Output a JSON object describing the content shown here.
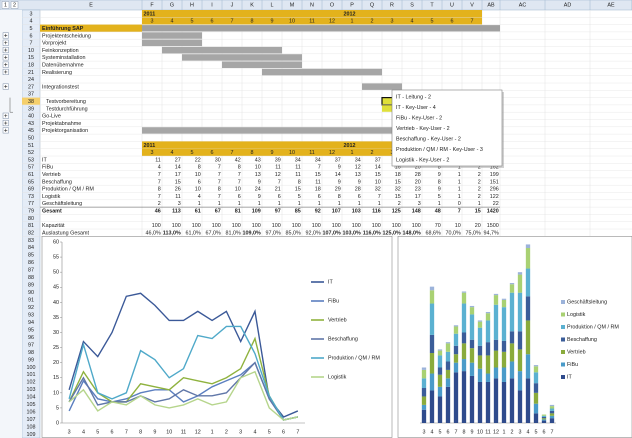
{
  "sheet": {
    "outline_levels": [
      1,
      2
    ],
    "columns": [
      "E",
      "F",
      "G",
      "H",
      "I",
      "J",
      "K",
      "L",
      "M",
      "N",
      "O",
      "P",
      "Q",
      "R",
      "S",
      "T",
      "U",
      "V",
      "AB",
      "AC",
      "AD",
      "AE"
    ]
  },
  "schedule": {
    "years": [
      2011,
      2012
    ],
    "months": [
      3,
      4,
      5,
      6,
      7,
      8,
      9,
      10,
      11,
      12,
      1,
      2,
      3,
      4,
      5,
      6,
      7
    ],
    "title": "Einführung SAP",
    "rows": [
      3,
      4,
      5,
      6,
      7,
      10,
      15,
      18,
      21,
      24,
      27,
      37,
      38,
      39,
      40,
      43,
      45,
      50
    ],
    "tasks": [
      {
        "row": 6,
        "name": "Projektentscheidung"
      },
      {
        "row": 7,
        "name": "Vorprojekt"
      },
      {
        "row": 10,
        "name": "Feinkonzeption"
      },
      {
        "row": 15,
        "name": "Systeminstallation"
      },
      {
        "row": 18,
        "name": "Datenübernahme"
      },
      {
        "row": 21,
        "name": "Realisierung"
      },
      {
        "row": 27,
        "name": "Integrationstest"
      },
      {
        "row": 38,
        "name": "Testvorbereitung"
      },
      {
        "row": 39,
        "name": "Testdurchführung"
      },
      {
        "row": 40,
        "name": "Go-Live"
      },
      {
        "row": 43,
        "name": "Projektabnahme"
      },
      {
        "row": 45,
        "name": "Projektorganisation"
      }
    ]
  },
  "popup": {
    "items": [
      "IT - Leitung - 2",
      "IT - Key-User - 4",
      "FiBu - Key-User - 2",
      "Vertrieb - Key-User - 2",
      "Beschaffung - Key-User - 2",
      "Produktion / QM / RM - Key-User - 3",
      "Logistik - Key-User - 2"
    ]
  },
  "resources": {
    "header_rows": [
      51,
      52
    ],
    "years": [
      2011,
      2012
    ],
    "months": [
      3,
      4,
      5,
      6,
      7,
      8,
      9,
      10,
      11,
      12,
      1,
      2,
      3,
      4,
      5,
      6,
      7
    ],
    "rows": [
      {
        "row": 53,
        "name": "IT",
        "values": [
          11,
          27,
          22,
          30,
          42,
          43,
          39,
          34,
          34,
          37,
          34,
          37,
          27,
          37,
          8,
          2,
          4
        ],
        "total": 468
      },
      {
        "row": 57,
        "name": "FiBu",
        "values": [
          4,
          14,
          8,
          7,
          8,
          10,
          11,
          11,
          7,
          9,
          12,
          14,
          16,
          20,
          8,
          1,
          2
        ],
        "total": 162
      },
      {
        "row": 61,
        "name": "Vertrieb",
        "values": [
          7,
          17,
          10,
          7,
          7,
          13,
          12,
          11,
          15,
          14,
          13,
          15,
          18,
          28,
          9,
          1,
          2
        ],
        "total": 199
      },
      {
        "row": 65,
        "name": "Beschaffung",
        "values": [
          7,
          15,
          6,
          7,
          7,
          9,
          7,
          8,
          11,
          9,
          9,
          10,
          15,
          20,
          8,
          1,
          2
        ],
        "total": 151
      },
      {
        "row": 69,
        "name": "Produktion / QM / RM",
        "values": [
          8,
          26,
          10,
          8,
          10,
          24,
          21,
          15,
          18,
          29,
          28,
          32,
          32,
          23,
          9,
          1,
          2
        ],
        "total": 296
      },
      {
        "row": 73,
        "name": "Logistik",
        "values": [
          7,
          11,
          4,
          7,
          6,
          9,
          6,
          5,
          6,
          8,
          6,
          7,
          15,
          17,
          5,
          1,
          2
        ],
        "total": 122
      },
      {
        "row": 77,
        "name": "Geschäftsleitung",
        "values": [
          2,
          3,
          1,
          1,
          1,
          1,
          1,
          1,
          1,
          1,
          1,
          1,
          2,
          3,
          1,
          0,
          1
        ],
        "total": 22
      }
    ],
    "sum": {
      "row": 79,
      "name": "Gesamt",
      "values": [
        46,
        113,
        61,
        67,
        81,
        109,
        97,
        85,
        92,
        107,
        103,
        116,
        125,
        148,
        48,
        7,
        15
      ],
      "total": 1420
    },
    "blank_row": 80,
    "capacity": {
      "row": 81,
      "name": "Kapazität",
      "values": [
        100,
        100,
        100,
        100,
        100,
        100,
        100,
        100,
        100,
        100,
        100,
        100,
        100,
        100,
        70,
        10,
        20
      ],
      "total": 1500
    },
    "utilization": {
      "row": 82,
      "name": "Auslastung Gesamt",
      "values": [
        "46,0%",
        "113,0%",
        "61,0%",
        "67,0%",
        "81,0%",
        "109,0%",
        "97,0%",
        "85,0%",
        "92,0%",
        "107,0%",
        "103,0%",
        "116,0%",
        "125,0%",
        "148,0%",
        "68,6%",
        "70,0%",
        "75,0%"
      ],
      "total": "94,7%"
    }
  },
  "lower_rows": [
    83,
    84,
    85,
    86,
    87,
    88,
    89,
    90,
    91,
    92,
    93,
    94,
    95,
    96,
    97,
    98,
    99,
    100,
    101,
    102,
    103,
    104,
    105,
    106,
    107,
    108,
    109
  ],
  "chart_data": [
    {
      "type": "line",
      "categories": [
        "3",
        "4",
        "5",
        "6",
        "7",
        "8",
        "9",
        "10",
        "11",
        "12",
        "1",
        "2",
        "3",
        "4",
        "5",
        "6",
        "7"
      ],
      "ylim": [
        0,
        60
      ],
      "yticks": [
        0,
        5,
        10,
        15,
        20,
        25,
        30,
        35,
        40,
        45,
        50,
        55,
        60
      ],
      "series": [
        {
          "name": "IT",
          "color": "#3b5998",
          "values": [
            11,
            27,
            22,
            30,
            42,
            43,
            39,
            34,
            34,
            37,
            34,
            37,
            27,
            37,
            8,
            2,
            4
          ]
        },
        {
          "name": "FiBu",
          "color": "#5b7fc0",
          "values": [
            4,
            14,
            8,
            7,
            8,
            10,
            11,
            11,
            7,
            9,
            12,
            14,
            16,
            20,
            8,
            1,
            2
          ]
        },
        {
          "name": "Vertrieb",
          "color": "#8fb23e",
          "values": [
            7,
            17,
            10,
            7,
            7,
            13,
            12,
            11,
            15,
            14,
            13,
            15,
            18,
            28,
            9,
            1,
            2
          ]
        },
        {
          "name": "Beschaffung",
          "color": "#6077a8",
          "values": [
            7,
            15,
            6,
            7,
            7,
            9,
            7,
            8,
            11,
            9,
            9,
            10,
            15,
            20,
            8,
            1,
            2
          ]
        },
        {
          "name": "Produktion / QM / RM",
          "color": "#4fa9c9",
          "values": [
            8,
            26,
            10,
            8,
            10,
            24,
            21,
            15,
            18,
            29,
            28,
            32,
            32,
            23,
            9,
            1,
            2
          ]
        },
        {
          "name": "Logistik",
          "color": "#b6d58c",
          "values": [
            7,
            11,
            4,
            7,
            6,
            9,
            6,
            5,
            6,
            8,
            6,
            7,
            15,
            17,
            5,
            1,
            2
          ]
        }
      ]
    },
    {
      "type": "bar",
      "stacked": true,
      "categories": [
        "3",
        "4",
        "5",
        "6",
        "7",
        "8",
        "9",
        "10",
        "11",
        "12",
        "1",
        "2",
        "3",
        "4",
        "5",
        "6",
        "7"
      ],
      "ylim": [
        0,
        150
      ],
      "series": [
        {
          "name": "IT",
          "color": "#2f4b8c",
          "values": [
            11,
            27,
            22,
            30,
            42,
            43,
            39,
            34,
            34,
            37,
            34,
            37,
            27,
            37,
            8,
            2,
            4
          ]
        },
        {
          "name": "FiBu",
          "color": "#4a9bc9",
          "values": [
            4,
            14,
            8,
            7,
            8,
            10,
            11,
            11,
            7,
            9,
            12,
            14,
            16,
            20,
            8,
            1,
            2
          ]
        },
        {
          "name": "Vertrieb",
          "color": "#8aab3c",
          "values": [
            7,
            17,
            10,
            7,
            7,
            13,
            12,
            11,
            15,
            14,
            13,
            15,
            18,
            28,
            9,
            1,
            2
          ]
        },
        {
          "name": "Beschaffung",
          "color": "#3b5d99",
          "values": [
            7,
            15,
            6,
            7,
            7,
            9,
            7,
            8,
            11,
            9,
            9,
            10,
            15,
            20,
            8,
            1,
            2
          ]
        },
        {
          "name": "Produktion / QM / RM",
          "color": "#5bb1d1",
          "values": [
            8,
            26,
            10,
            8,
            10,
            24,
            21,
            15,
            18,
            29,
            28,
            32,
            32,
            23,
            9,
            1,
            2
          ]
        },
        {
          "name": "Logistik",
          "color": "#a9d173",
          "values": [
            7,
            11,
            4,
            7,
            6,
            9,
            6,
            5,
            6,
            8,
            6,
            7,
            15,
            17,
            5,
            1,
            2
          ]
        },
        {
          "name": "Geschäftsleitung",
          "color": "#9cb3da",
          "values": [
            2,
            3,
            1,
            1,
            1,
            1,
            1,
            1,
            1,
            1,
            1,
            1,
            2,
            3,
            1,
            0,
            1
          ]
        }
      ]
    }
  ]
}
